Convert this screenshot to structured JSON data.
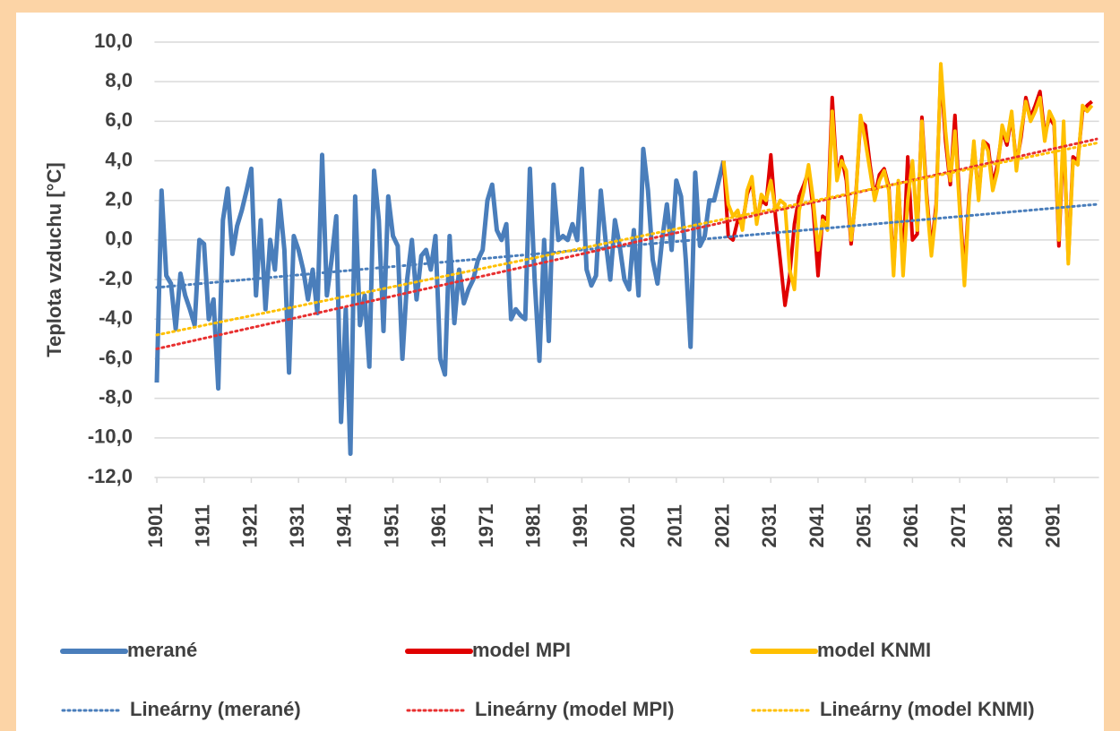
{
  "chart_data": {
    "type": "line",
    "ylabel": "Teplota vzduchu [°C]",
    "xlim": [
      1900.5,
      2100.5
    ],
    "xticks": [
      1901,
      1911,
      1921,
      1931,
      1941,
      1951,
      1961,
      1971,
      1981,
      1991,
      2001,
      2011,
      2021,
      2031,
      2041,
      2051,
      2061,
      2071,
      2081,
      2091
    ],
    "ylim": [
      -12,
      10
    ],
    "yticks": [
      {
        "value": -12,
        "label": "-12,0"
      },
      {
        "value": -10,
        "label": "-10,0"
      },
      {
        "value": -8,
        "label": "-8,0"
      },
      {
        "value": -6,
        "label": "-6,0"
      },
      {
        "value": -4,
        "label": "-4,0"
      },
      {
        "value": -2,
        "label": "-2,0"
      },
      {
        "value": 0,
        "label": "0,0"
      },
      {
        "value": 2,
        "label": "2,0"
      },
      {
        "value": 4,
        "label": "4,0"
      },
      {
        "value": 6,
        "label": "6,0"
      },
      {
        "value": 8,
        "label": "8,0"
      },
      {
        "value": 10,
        "label": "10,0"
      }
    ],
    "grid": true,
    "legend": "bottom",
    "series": [
      {
        "name": "merané",
        "color": "#4a7ebb",
        "style": "solid",
        "x": [
          1901,
          1902,
          1903,
          1904,
          1905,
          1906,
          1907,
          1908,
          1909,
          1910,
          1911,
          1912,
          1913,
          1914,
          1915,
          1916,
          1917,
          1918,
          1919,
          1920,
          1921,
          1922,
          1923,
          1924,
          1925,
          1926,
          1927,
          1928,
          1929,
          1930,
          1931,
          1932,
          1933,
          1934,
          1935,
          1936,
          1937,
          1938,
          1939,
          1940,
          1941,
          1942,
          1943,
          1944,
          1945,
          1946,
          1947,
          1948,
          1949,
          1950,
          1951,
          1952,
          1953,
          1954,
          1955,
          1956,
          1957,
          1958,
          1959,
          1960,
          1961,
          1962,
          1963,
          1964,
          1965,
          1966,
          1967,
          1968,
          1969,
          1970,
          1971,
          1972,
          1973,
          1974,
          1975,
          1976,
          1977,
          1978,
          1979,
          1980,
          1981,
          1982,
          1983,
          1984,
          1985,
          1986,
          1987,
          1988,
          1989,
          1990,
          1991,
          1992,
          1993,
          1994,
          1995,
          1996,
          1997,
          1998,
          1999,
          2000,
          2001,
          2002,
          2003,
          2004,
          2005,
          2006,
          2007,
          2008,
          2009,
          2010,
          2011,
          2012,
          2013,
          2014,
          2015,
          2016,
          2017,
          2018,
          2019,
          2020,
          2021
        ],
        "values": [
          -7.2,
          2.5,
          -1.8,
          -2.2,
          -4.5,
          -1.7,
          -2.8,
          -3.5,
          -4.3,
          0.0,
          -0.2,
          -4.0,
          -3.0,
          -7.5,
          1.0,
          2.6,
          -0.7,
          0.7,
          1.5,
          2.5,
          3.6,
          -2.8,
          1.0,
          -3.5,
          0.0,
          -1.5,
          2.0,
          -0.5,
          -6.7,
          0.2,
          -0.5,
          -1.5,
          -3.0,
          -1.5,
          -3.7,
          4.3,
          -2.8,
          -1.0,
          1.2,
          -9.2,
          -3.5,
          -10.8,
          2.2,
          -4.3,
          -2.8,
          -6.4,
          3.5,
          1.0,
          -4.6,
          2.2,
          0.2,
          -0.3,
          -6.0,
          -2.0,
          0.0,
          -3.0,
          -0.8,
          -0.5,
          -1.5,
          0.2,
          -6.0,
          -6.8,
          0.2,
          -4.2,
          -1.5,
          -3.2,
          -2.5,
          -2.0,
          -1.0,
          -0.5,
          2.0,
          2.8,
          0.5,
          0.0,
          0.8,
          -4.0,
          -3.5,
          -3.8,
          -4.0,
          3.6,
          -2.0,
          -6.1,
          0.0,
          -5.1,
          2.8,
          0.0,
          0.2,
          0.0,
          0.8,
          0.0,
          3.6,
          -1.5,
          -2.3,
          -1.8,
          2.5,
          0.0,
          -2.0,
          1.0,
          -0.3,
          -2.0,
          -2.5,
          0.5,
          -2.8,
          4.6,
          2.5,
          -1.0,
          -2.2,
          0.0,
          1.8,
          -0.5,
          3.0,
          2.2,
          -1.0,
          -5.4,
          3.4,
          -0.3,
          0.2,
          2.0,
          2.0,
          3.0,
          4.0
        ]
      },
      {
        "name": "model MPI",
        "color": "#e00000",
        "style": "solid",
        "x": [
          2021,
          2022,
          2023,
          2024,
          2025,
          2026,
          2027,
          2028,
          2029,
          2030,
          2031,
          2032,
          2033,
          2034,
          2035,
          2036,
          2037,
          2038,
          2039,
          2040,
          2041,
          2042,
          2043,
          2044,
          2045,
          2046,
          2047,
          2048,
          2049,
          2050,
          2051,
          2052,
          2053,
          2054,
          2055,
          2056,
          2057,
          2058,
          2059,
          2060,
          2061,
          2062,
          2063,
          2064,
          2065,
          2066,
          2067,
          2068,
          2069,
          2070,
          2071,
          2072,
          2073,
          2074,
          2075,
          2076,
          2077,
          2078,
          2079,
          2080,
          2081,
          2082,
          2083,
          2084,
          2085,
          2086,
          2087,
          2088,
          2089,
          2090,
          2091,
          2092,
          2093,
          2094,
          2095,
          2096,
          2097,
          2098,
          2099
        ],
        "values": [
          4.0,
          0.2,
          0.0,
          1.0,
          0.8,
          2.3,
          3.0,
          1.0,
          2.0,
          1.8,
          4.3,
          1.2,
          -1.0,
          -3.3,
          -1.8,
          0.8,
          2.2,
          2.8,
          3.5,
          1.5,
          -1.8,
          1.2,
          1.0,
          7.2,
          3.2,
          4.2,
          3.0,
          -0.2,
          2.2,
          6.0,
          5.8,
          3.8,
          2.2,
          3.3,
          3.6,
          2.7,
          -1.5,
          2.8,
          -1.2,
          4.2,
          0.0,
          0.3,
          6.2,
          2.3,
          -0.5,
          1.8,
          8.6,
          5.0,
          2.8,
          6.3,
          1.8,
          -1.8,
          2.3,
          4.8,
          2.2,
          5.0,
          4.8,
          2.8,
          3.8,
          5.5,
          4.8,
          6.3,
          3.8,
          5.2,
          7.2,
          6.2,
          6.8,
          7.5,
          5.3,
          6.2,
          5.8,
          -0.3,
          5.5,
          -1.0,
          4.2,
          4.0,
          6.5,
          6.8,
          7.0
        ]
      },
      {
        "name": "model KNMI",
        "color": "#ffc000",
        "style": "solid",
        "x": [
          2021,
          2022,
          2023,
          2024,
          2025,
          2026,
          2027,
          2028,
          2029,
          2030,
          2031,
          2032,
          2033,
          2034,
          2035,
          2036,
          2037,
          2038,
          2039,
          2040,
          2041,
          2042,
          2043,
          2044,
          2045,
          2046,
          2047,
          2048,
          2049,
          2050,
          2051,
          2052,
          2053,
          2054,
          2055,
          2056,
          2057,
          2058,
          2059,
          2060,
          2061,
          2062,
          2063,
          2064,
          2065,
          2066,
          2067,
          2068,
          2069,
          2070,
          2071,
          2072,
          2073,
          2074,
          2075,
          2076,
          2077,
          2078,
          2079,
          2080,
          2081,
          2082,
          2083,
          2084,
          2085,
          2086,
          2087,
          2088,
          2089,
          2090,
          2091,
          2092,
          2093,
          2094,
          2095,
          2096,
          2097,
          2098,
          2099
        ],
        "values": [
          4.0,
          1.8,
          1.2,
          1.5,
          0.5,
          2.5,
          3.2,
          0.8,
          2.3,
          2.0,
          3.0,
          1.5,
          2.0,
          1.8,
          -1.5,
          -2.5,
          1.5,
          2.5,
          3.8,
          2.0,
          -0.5,
          1.0,
          0.5,
          6.5,
          3.0,
          4.0,
          3.5,
          0.0,
          2.0,
          6.3,
          5.0,
          3.5,
          2.0,
          3.0,
          3.5,
          2.5,
          -1.8,
          3.0,
          -1.8,
          2.0,
          4.0,
          0.5,
          6.0,
          2.0,
          -0.8,
          1.5,
          8.9,
          5.5,
          3.0,
          5.5,
          1.5,
          -2.3,
          2.0,
          5.0,
          2.0,
          5.0,
          4.5,
          2.5,
          3.5,
          5.8,
          5.0,
          6.5,
          3.5,
          5.5,
          7.0,
          6.0,
          6.5,
          7.2,
          5.0,
          6.5,
          6.0,
          0.0,
          6.0,
          -1.2,
          4.0,
          3.8,
          6.8,
          6.5,
          6.8
        ]
      },
      {
        "name": "Lineárny (merané)",
        "color": "#4a7ebb",
        "style": "dotted",
        "x": [
          1901,
          2100
        ],
        "values": [
          -2.4,
          1.8
        ]
      },
      {
        "name": "Lineárny (model MPI)",
        "color": "#e83030",
        "style": "dotted",
        "x": [
          1901,
          2100
        ],
        "values": [
          -5.5,
          5.1
        ]
      },
      {
        "name": "Lineárny (model KNMI)",
        "color": "#ffc000",
        "style": "dotted",
        "x": [
          1901,
          2100
        ],
        "values": [
          -4.8,
          4.9
        ]
      }
    ]
  }
}
